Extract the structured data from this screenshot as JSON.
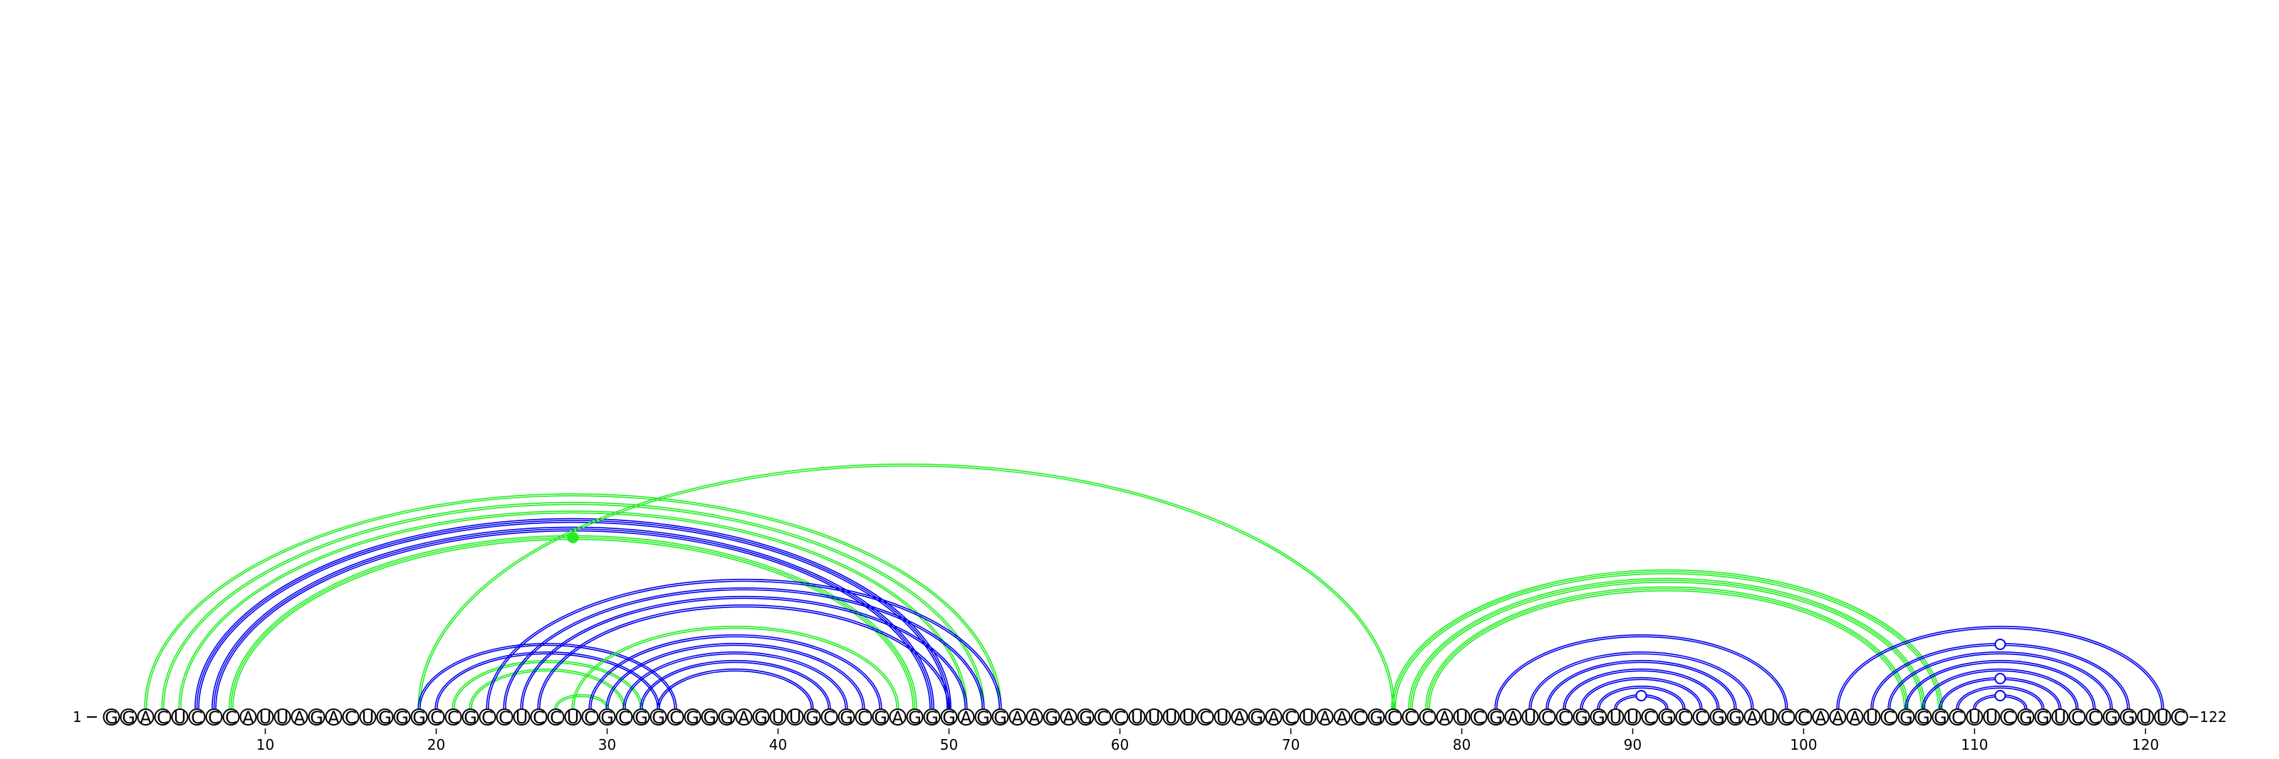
{
  "sequence": "GGACUCCCAUUAGACUGGGCCGCCUCCUCGCGGCGGGAGUUGCGCGAGGGAGGAAGAGCCUUUUCUAGACUAACGCCCAUCGAUCCGGUUCGCCGGAUCCAAAUCGGGCUUCGGUCCGGUUC",
  "start_label": "1",
  "end_label": "122",
  "ticks": [
    10,
    20,
    30,
    40,
    50,
    60,
    70,
    80,
    90,
    100,
    110,
    120
  ],
  "colors": {
    "green": "#22ee22",
    "blue": "#0000ee",
    "background": "#ffffff"
  },
  "arcs": [
    {
      "i": 3,
      "j": 53,
      "color": "green",
      "lines": 2
    },
    {
      "i": 4,
      "j": 52,
      "color": "green",
      "lines": 2
    },
    {
      "i": 5,
      "j": 51,
      "color": "green",
      "lines": 2
    },
    {
      "i": 6,
      "j": 50,
      "color": "blue",
      "lines": 3
    },
    {
      "i": 7,
      "j": 49,
      "color": "blue",
      "lines": 3
    },
    {
      "i": 8,
      "j": 48,
      "color": "green",
      "lines": 3
    },
    {
      "i": 19,
      "j": 76,
      "color": "green",
      "lines": 2
    },
    {
      "i": 19,
      "j": 34,
      "color": "blue",
      "lines": 2
    },
    {
      "i": 20,
      "j": 33,
      "color": "blue",
      "lines": 2
    },
    {
      "i": 21,
      "j": 32,
      "color": "green",
      "lines": 2
    },
    {
      "i": 22,
      "j": 31,
      "color": "green",
      "lines": 2
    },
    {
      "i": 23,
      "j": 53,
      "color": "blue",
      "lines": 2
    },
    {
      "i": 24,
      "j": 52,
      "color": "blue",
      "lines": 2
    },
    {
      "i": 25,
      "j": 51,
      "color": "blue",
      "lines": 2
    },
    {
      "i": 26,
      "j": 50,
      "color": "blue",
      "lines": 2
    },
    {
      "i": 27,
      "j": 30,
      "color": "green",
      "lines": 2
    },
    {
      "i": 28,
      "j": 47,
      "color": "green",
      "lines": 2
    },
    {
      "i": 29,
      "j": 46,
      "color": "blue",
      "lines": 2
    },
    {
      "i": 30,
      "j": 45,
      "color": "blue",
      "lines": 2
    },
    {
      "i": 31,
      "j": 44,
      "color": "blue",
      "lines": 2
    },
    {
      "i": 32,
      "j": 43,
      "color": "blue",
      "lines": 2
    },
    {
      "i": 33,
      "j": 42,
      "color": "blue",
      "lines": 2
    },
    {
      "i": 76,
      "j": 108,
      "color": "green",
      "lines": 3
    },
    {
      "i": 77,
      "j": 107,
      "color": "green",
      "lines": 3
    },
    {
      "i": 78,
      "j": 106,
      "color": "green",
      "lines": 3
    },
    {
      "i": 82,
      "j": 99,
      "color": "blue",
      "lines": 2
    },
    {
      "i": 84,
      "j": 97,
      "color": "blue",
      "lines": 2
    },
    {
      "i": 85,
      "j": 96,
      "color": "blue",
      "lines": 2
    },
    {
      "i": 86,
      "j": 95,
      "color": "blue",
      "lines": 2
    },
    {
      "i": 87,
      "j": 94,
      "color": "blue",
      "lines": 2
    },
    {
      "i": 88,
      "j": 93,
      "color": "blue",
      "lines": 2
    },
    {
      "i": 89,
      "j": 92,
      "color": "blue",
      "lines": 2
    },
    {
      "i": 102,
      "j": 121,
      "color": "blue",
      "lines": 2
    },
    {
      "i": 104,
      "j": 119,
      "color": "blue",
      "lines": 2
    },
    {
      "i": 105,
      "j": 118,
      "color": "blue",
      "lines": 2
    },
    {
      "i": 106,
      "j": 117,
      "color": "blue",
      "lines": 2
    },
    {
      "i": 107,
      "j": 116,
      "color": "blue",
      "lines": 2
    },
    {
      "i": 108,
      "j": 115,
      "color": "blue",
      "lines": 2
    },
    {
      "i": 109,
      "j": 114,
      "color": "blue",
      "lines": 2
    },
    {
      "i": 110,
      "j": 113,
      "color": "blue",
      "lines": 2
    }
  ],
  "markers": [
    {
      "on_arc": 5,
      "style": "filled",
      "color": "green"
    },
    {
      "on_arc": 31,
      "style": "open",
      "color": "blue"
    },
    {
      "on_arc": 33,
      "style": "open",
      "color": "blue"
    },
    {
      "on_arc": 37,
      "style": "open",
      "color": "blue"
    },
    {
      "on_arc": 39,
      "style": "open",
      "color": "blue"
    }
  ]
}
